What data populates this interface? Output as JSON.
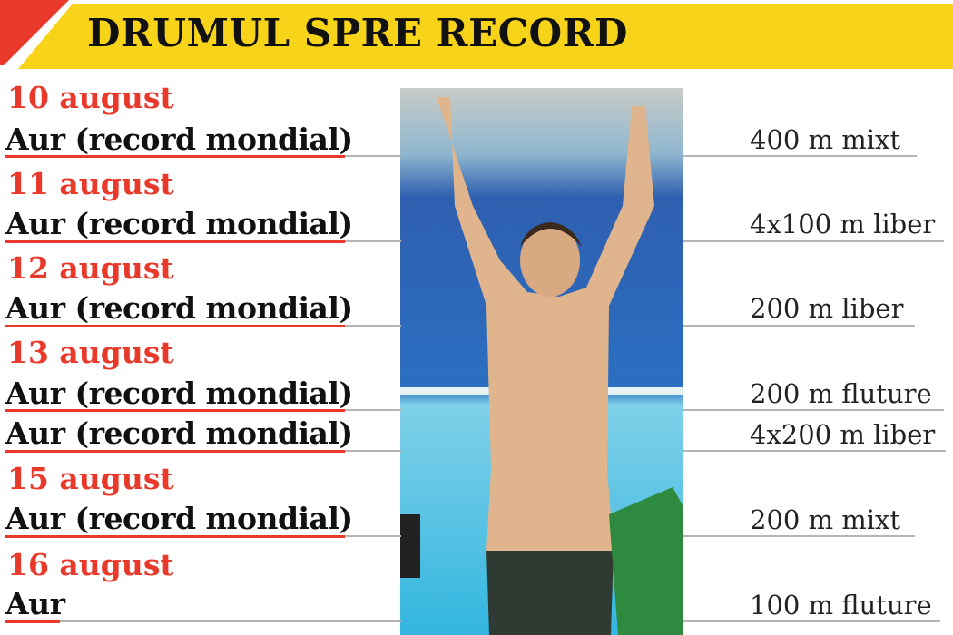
{
  "header": {
    "title": "DRUMUL SPRE RECORD"
  },
  "colors": {
    "accent_red": "#e8392b",
    "header_yellow": "#f7d419"
  },
  "entries": [
    {
      "date": "10 august",
      "result": "Aur (record mondial)",
      "event": "400 m mixt"
    },
    {
      "date": "11 august",
      "result": "Aur (record mondial)",
      "event": "4x100 m liber"
    },
    {
      "date": "12 august",
      "result": "Aur (record mondial)",
      "event": "200 m liber"
    },
    {
      "date": "13 august",
      "result": "Aur (record mondial)",
      "event": "200 m fluture"
    },
    {
      "date": "",
      "result": "Aur (record mondial)",
      "event": "4x200 m liber"
    },
    {
      "date": "15 august",
      "result": "Aur (record mondial)",
      "event": "200 m mixt"
    },
    {
      "date": "16 august",
      "result": "Aur",
      "event": "100 m fluture"
    }
  ],
  "photo": {
    "subject": "swimmer-celebrating-photo"
  }
}
